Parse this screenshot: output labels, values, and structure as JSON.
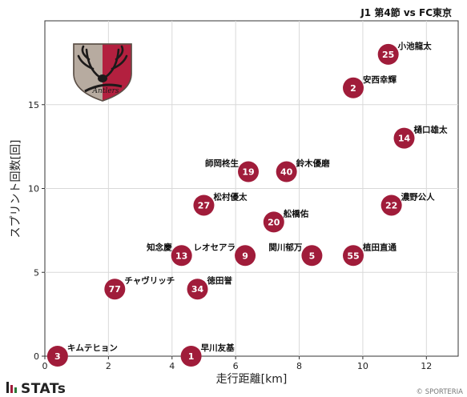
{
  "chart_data": {
    "type": "scatter",
    "title": "J1 第4節 vs FC東京",
    "xlabel": "走行距離[km]",
    "ylabel": "スプリント回数[回]",
    "xlim": [
      0,
      13
    ],
    "ylim": [
      0,
      20
    ],
    "xticks": [
      0,
      2,
      4,
      6,
      8,
      10,
      12
    ],
    "yticks": [
      0,
      5,
      10,
      15
    ],
    "grid": true,
    "marker_color": "#a01c3a",
    "points": [
      {
        "number": "25",
        "name": "小池龍太",
        "x": 10.8,
        "y": 18,
        "label_side": "right"
      },
      {
        "number": "2",
        "name": "安西幸輝",
        "x": 9.7,
        "y": 16,
        "label_side": "right"
      },
      {
        "number": "14",
        "name": "樋口雄太",
        "x": 11.3,
        "y": 13,
        "label_side": "right"
      },
      {
        "number": "19",
        "name": "師岡柊生",
        "x": 6.4,
        "y": 11,
        "label_side": "left"
      },
      {
        "number": "40",
        "name": "鈴木優磨",
        "x": 7.6,
        "y": 11,
        "label_side": "right"
      },
      {
        "number": "27",
        "name": "松村優太",
        "x": 5.0,
        "y": 9,
        "label_side": "right"
      },
      {
        "number": "22",
        "name": "濃野公人",
        "x": 10.9,
        "y": 9,
        "label_side": "right"
      },
      {
        "number": "20",
        "name": "舩橋佑",
        "x": 7.2,
        "y": 8,
        "label_side": "right"
      },
      {
        "number": "13",
        "name": "知念慶",
        "x": 4.3,
        "y": 6,
        "label_side": "left"
      },
      {
        "number": "9",
        "name": "レオセアラ",
        "x": 6.3,
        "y": 6,
        "label_side": "left"
      },
      {
        "number": "5",
        "name": "関川郁万",
        "x": 8.4,
        "y": 6,
        "label_side": "left"
      },
      {
        "number": "55",
        "name": "植田直通",
        "x": 9.7,
        "y": 6,
        "label_side": "right"
      },
      {
        "number": "77",
        "name": "チャヴリッチ",
        "x": 2.2,
        "y": 4,
        "label_side": "right"
      },
      {
        "number": "34",
        "name": "徳田誉",
        "x": 4.8,
        "y": 4,
        "label_side": "right"
      },
      {
        "number": "3",
        "name": "キムテヒョン",
        "x": 0.4,
        "y": 0,
        "label_side": "right"
      },
      {
        "number": "1",
        "name": "早川友基",
        "x": 4.6,
        "y": 0,
        "label_side": "right"
      }
    ]
  },
  "branding": {
    "stats_logo": "STATs",
    "copyright": "© SPORTERIA",
    "crest_icon": "kashima-antlers-crest-icon"
  }
}
